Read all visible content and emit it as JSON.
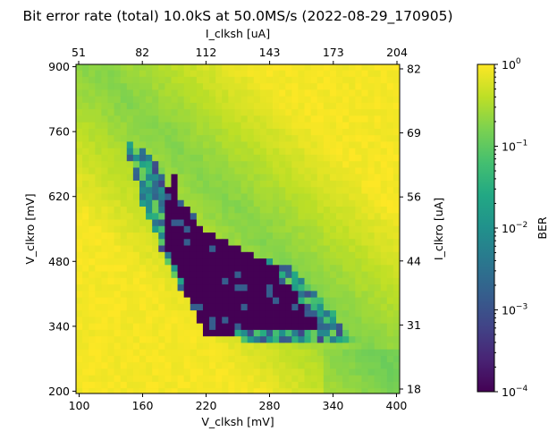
{
  "chart_data": {
    "type": "heatmap",
    "title": "Bit error rate (total) 10.0kS at 50.0MS/s (2022-08-29_170905)",
    "xlabel": "V_clksh [mV]",
    "ylabel": "V_clkro [mV]",
    "top_xlabel": "I_clksh [uA]",
    "right_ylabel": "I_clkro [uA]",
    "xlim": [
      97,
      403
    ],
    "ylim": [
      195,
      905
    ],
    "xticks": [
      "100",
      "160",
      "220",
      "280",
      "340",
      "400"
    ],
    "yticks": [
      "200",
      "340",
      "480",
      "620",
      "760",
      "900"
    ],
    "top_xticks": [
      "51",
      "82",
      "112",
      "143",
      "173",
      "204"
    ],
    "right_yticks": [
      "18",
      "31",
      "44",
      "56",
      "69",
      "82"
    ],
    "grid_x": {
      "start": 100,
      "step": 6,
      "count": 51
    },
    "grid_y": {
      "start": 200,
      "step": 14,
      "count": 51
    },
    "colorbar": {
      "label": "BER",
      "scale": "log",
      "range": [
        0.0001,
        1
      ],
      "colormap": "viridis",
      "ticks": [
        {
          "base": "10",
          "exp": "0"
        },
        {
          "base": "10",
          "exp": "−1"
        },
        {
          "base": "10",
          "exp": "−2"
        },
        {
          "base": "10",
          "exp": "−3"
        },
        {
          "base": "10",
          "exp": "−4"
        }
      ]
    },
    "regions": {
      "background_ber": 0.5,
      "error_free_core": {
        "description_points_V_clksh_V_clkro": [
          [
            187,
            734
          ],
          [
            193,
            618
          ],
          [
            222,
            542
          ],
          [
            287,
            466
          ],
          [
            328,
            336
          ],
          [
            218,
            322
          ],
          [
            200,
            420
          ],
          [
            180,
            530
          ]
        ],
        "ber": 0.0001
      },
      "transition_band": {
        "points_V_clksh_V_clkro": [
          [
            142,
            748
          ],
          [
            174,
            700
          ],
          [
            196,
            580
          ],
          [
            212,
            530
          ],
          [
            300,
            470
          ],
          [
            367,
            300
          ],
          [
            257,
            300
          ],
          [
            195,
            420
          ],
          [
            160,
            600
          ]
        ],
        "ber": 0.03
      }
    }
  }
}
